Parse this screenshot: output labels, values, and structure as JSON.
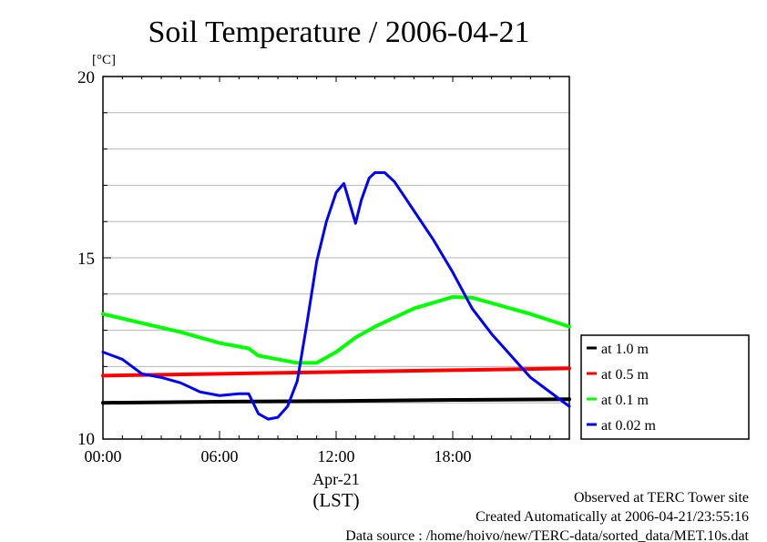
{
  "chart_data": {
    "type": "line",
    "title": "Soil Temperature / 2006-04-21",
    "ylabel": "[°C]",
    "ylim": [
      10,
      20
    ],
    "xlim": [
      0,
      24
    ],
    "y_ticks": [
      "10",
      "15",
      "20"
    ],
    "x_ticks": [
      {
        "value": 0,
        "label": "00:00"
      },
      {
        "value": 6,
        "label": "06:00"
      },
      {
        "value": 12,
        "label": "12:00"
      },
      {
        "value": 18,
        "label": "18:00"
      }
    ],
    "x_date_label": "Apr-21",
    "x_unit_label": "(LST)",
    "grid": true,
    "legend_position": "right",
    "series": [
      {
        "name": "at 1.0 m",
        "color": "#000000",
        "x": [
          0,
          6,
          12,
          18,
          24
        ],
        "y": [
          11.0,
          11.03,
          11.05,
          11.08,
          11.1
        ]
      },
      {
        "name": "at 0.5 m",
        "color": "#ff0000",
        "x": [
          0,
          6,
          12,
          18,
          24
        ],
        "y": [
          11.75,
          11.8,
          11.85,
          11.9,
          11.95
        ]
      },
      {
        "name": "at 0.1 m",
        "color": "#00ff00",
        "x": [
          0,
          2,
          4,
          6,
          7.5,
          8,
          9,
          10,
          11,
          12,
          13,
          14,
          16,
          18,
          19,
          20,
          22,
          24
        ],
        "y": [
          13.45,
          13.2,
          12.95,
          12.65,
          12.5,
          12.3,
          12.2,
          12.1,
          12.1,
          12.4,
          12.8,
          13.1,
          13.6,
          13.92,
          13.9,
          13.75,
          13.45,
          13.1
        ]
      },
      {
        "name": "at 0.02 m",
        "color": "#0000ff",
        "x": [
          0,
          1,
          2,
          3,
          4,
          5,
          6,
          7,
          7.5,
          8,
          8.5,
          9,
          9.5,
          10,
          10.5,
          11,
          11.5,
          12,
          12.4,
          12.7,
          13,
          13.3,
          13.7,
          14,
          14.5,
          15,
          15.5,
          16,
          17,
          18,
          19,
          20,
          21,
          22,
          23,
          24
        ],
        "y": [
          12.4,
          12.2,
          11.8,
          11.7,
          11.55,
          11.3,
          11.2,
          11.25,
          11.25,
          10.7,
          10.55,
          10.6,
          10.9,
          11.6,
          13.2,
          14.9,
          16.0,
          16.8,
          17.05,
          16.5,
          15.95,
          16.6,
          17.2,
          17.35,
          17.35,
          17.1,
          16.7,
          16.3,
          15.5,
          14.6,
          13.6,
          12.9,
          12.3,
          11.7,
          11.3,
          10.9
        ]
      }
    ]
  },
  "footer": {
    "line1": "Observed at TERC Tower site",
    "line2": "Created Automatically at 2006-04-21/23:55:16",
    "line3": "Data source : /home/hoivo/new/TERC-data/sorted_data/MET.10s.dat"
  }
}
